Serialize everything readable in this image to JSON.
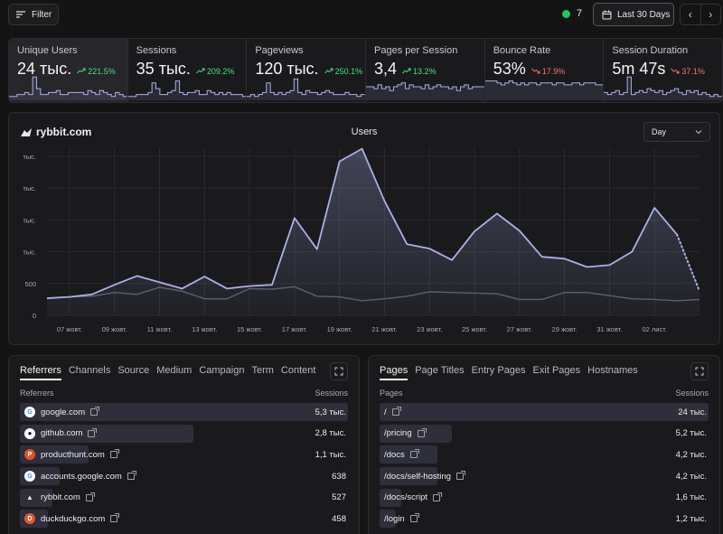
{
  "topbar": {
    "filter_label": "Filter",
    "live_count": "7",
    "date_range_label": "Last 30 Days",
    "prev_label": "‹",
    "next_label": "›"
  },
  "metrics": [
    {
      "label": "Unique Users",
      "value": "24 тыс.",
      "change": "221.5%",
      "direction": "up",
      "active": true
    },
    {
      "label": "Sessions",
      "value": "35 тыс.",
      "change": "209.2%",
      "direction": "up",
      "active": false
    },
    {
      "label": "Pageviews",
      "value": "120 тыс.",
      "change": "250.1%",
      "direction": "up",
      "active": false
    },
    {
      "label": "Pages per Session",
      "value": "3,4",
      "change": "13.2%",
      "direction": "up",
      "active": false
    },
    {
      "label": "Bounce Rate",
      "value": "53%",
      "change": "17.9%",
      "direction": "down",
      "active": false
    },
    {
      "label": "Session Duration",
      "value": "5m 47s",
      "change": "37.1%",
      "direction": "down",
      "active": false
    }
  ],
  "chart": {
    "brand": "rybbit.com",
    "title": "Users",
    "granularity": "Day"
  },
  "chart_data": {
    "type": "line",
    "title": "Users",
    "y_ticks": [
      "0",
      "500",
      "тыс.",
      "тыс.",
      "тыс.",
      "тыс."
    ],
    "x_ticks": [
      "07 жовт.",
      "09 жовт.",
      "11 жовт.",
      "13 жовт.",
      "15 жовт.",
      "17 жовт.",
      "19 жовт.",
      "21 жовт.",
      "23 жовт.",
      "25 жовт.",
      "27 жовт.",
      "29 жовт.",
      "31 жовт.",
      "02 лист."
    ],
    "ylim": [
      0,
      2500
    ],
    "x": [
      "06 жовт.",
      "07 жовт.",
      "08 жовт.",
      "09 жовт.",
      "10 жовт.",
      "11 жовт.",
      "12 жовт.",
      "13 жовт.",
      "14 жовт.",
      "15 жовт.",
      "16 жовт.",
      "17 жовт.",
      "18 жовт.",
      "19 жовт.",
      "20 жовт.",
      "21 жовт.",
      "22 жовт.",
      "23 жовт.",
      "24 жовт.",
      "25 жовт.",
      "26 жовт.",
      "27 жовт.",
      "28 жовт.",
      "29 жовт.",
      "30 жовт.",
      "31 жовт.",
      "01 лист.",
      "02 лист.",
      "03 лист.",
      "04 лист."
    ],
    "series": [
      {
        "values": [
          270,
          290,
          330,
          480,
          620,
          520,
          420,
          610,
          420,
          460,
          480,
          1530,
          1040,
          2420,
          2620,
          1800,
          1120,
          1050,
          870,
          1320,
          1600,
          1330,
          920,
          890,
          760,
          790,
          1000,
          1690,
          1270,
          380
        ],
        "color": "#aab0e8",
        "projected_from_index": 28
      },
      {
        "values": [
          260,
          290,
          300,
          360,
          330,
          440,
          380,
          260,
          260,
          420,
          410,
          450,
          300,
          290,
          230,
          260,
          300,
          370,
          360,
          350,
          340,
          250,
          250,
          360,
          360,
          310,
          260,
          250,
          230,
          250
        ],
        "color": "#5a5a62"
      }
    ]
  },
  "referrers": {
    "tabs": [
      "Referrers",
      "Channels",
      "Source",
      "Medium",
      "Campaign",
      "Term",
      "Content"
    ],
    "col_left": "Referrers",
    "col_right": "Sessions",
    "rows": [
      {
        "label": "google.com",
        "value": "5,3 тыс.",
        "fraction": 1.0,
        "icon": "google-icon"
      },
      {
        "label": "github.com",
        "value": "2,8 тыс.",
        "fraction": 0.53,
        "icon": "github-icon"
      },
      {
        "label": "producthunt.com",
        "value": "1,1 тыс.",
        "fraction": 0.21,
        "icon": "producthunt-icon"
      },
      {
        "label": "accounts.google.com",
        "value": "638",
        "fraction": 0.12,
        "icon": "google-icon"
      },
      {
        "label": "rybbit.com",
        "value": "527",
        "fraction": 0.1,
        "icon": "rybbit-icon"
      },
      {
        "label": "duckduckgo.com",
        "value": "458",
        "fraction": 0.086,
        "icon": "duckduckgo-icon"
      }
    ]
  },
  "pages": {
    "tabs": [
      "Pages",
      "Page Titles",
      "Entry Pages",
      "Exit Pages",
      "Hostnames"
    ],
    "col_left": "Pages",
    "col_right": "Sessions",
    "rows": [
      {
        "label": "/",
        "value": "24 тыс.",
        "fraction": 1.0
      },
      {
        "label": "/pricing",
        "value": "5,2 тыс.",
        "fraction": 0.22
      },
      {
        "label": "/docs",
        "value": "4,2 тыс.",
        "fraction": 0.175
      },
      {
        "label": "/docs/self-hosting",
        "value": "4,2 тыс.",
        "fraction": 0.175
      },
      {
        "label": "/docs/script",
        "value": "1,6 тыс.",
        "fraction": 0.067
      },
      {
        "label": "/login",
        "value": "1,2 тыс.",
        "fraction": 0.05
      }
    ]
  },
  "colors": {
    "accent_line": "#aab0e8",
    "positive": "#4ade80",
    "negative": "#f87171",
    "live_dot": "#22c55e"
  }
}
